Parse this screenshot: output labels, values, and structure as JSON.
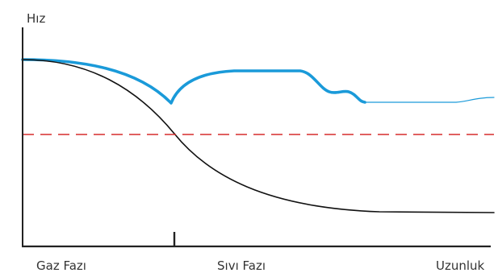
{
  "labels": {
    "y_axis": "Hız",
    "x_start": "Gaz Fazı",
    "x_middle": "Sıvı Fazı",
    "x_end": "Uzunluk"
  },
  "colors": {
    "blue_curve": "#1a9ad9",
    "black_curve": "#111111",
    "threshold_line": "#d62b2b",
    "axes": "#222222"
  },
  "line_styles": {
    "threshold": "dashed"
  }
}
